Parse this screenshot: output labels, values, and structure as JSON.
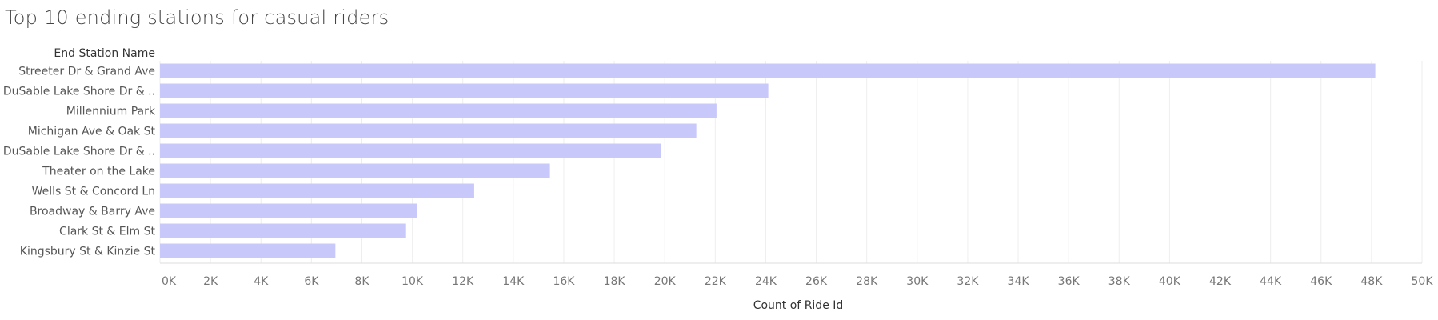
{
  "title": "Top 10 ending stations for casual riders",
  "colors": {
    "bar": "#c8c8fa",
    "grid": "#eeeeee",
    "axis": "#dddddd"
  },
  "chart_data": {
    "type": "bar",
    "orientation": "horizontal",
    "title": "Top 10 ending stations for casual riders",
    "ylabel": "End Station Name",
    "xlabel": "Count of Ride Id",
    "categories": [
      "Streeter Dr & Grand Ave",
      "DuSable Lake Shore Dr & ..",
      "Millennium Park",
      "Michigan Ave & Oak St",
      "DuSable Lake Shore Dr & ..",
      "Theater on the Lake",
      "Wells St & Concord Ln",
      "Broadway & Barry Ave",
      "Clark St & Elm St",
      "Kingsbury St & Kinzie St"
    ],
    "values": [
      48150,
      24100,
      22050,
      21250,
      19850,
      15450,
      12450,
      10200,
      9750,
      6950
    ],
    "xlim": [
      0,
      50000
    ],
    "ticks": [
      0,
      2000,
      4000,
      6000,
      8000,
      10000,
      12000,
      14000,
      16000,
      18000,
      20000,
      22000,
      24000,
      26000,
      28000,
      30000,
      32000,
      34000,
      36000,
      38000,
      40000,
      42000,
      44000,
      46000,
      48000,
      50000
    ],
    "tick_labels": [
      "0K",
      "2K",
      "4K",
      "6K",
      "8K",
      "10K",
      "12K",
      "14K",
      "16K",
      "18K",
      "20K",
      "22K",
      "24K",
      "26K",
      "28K",
      "30K",
      "32K",
      "34K",
      "36K",
      "38K",
      "40K",
      "42K",
      "44K",
      "46K",
      "48K",
      "50K"
    ],
    "grid": true
  }
}
